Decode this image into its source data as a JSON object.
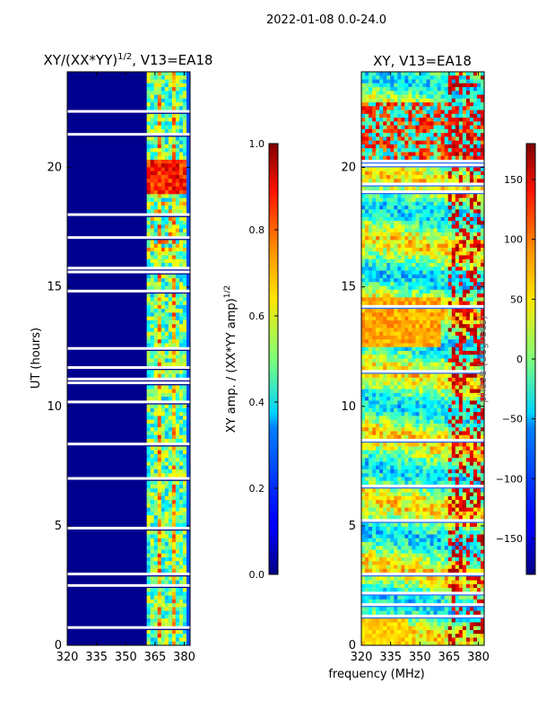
{
  "suptitle": "2022-01-08 0.0-24.0",
  "chart_data": [
    {
      "type": "heatmap",
      "title_main": "XY/(XX*YY)",
      "title_sup": "1/2",
      "title_tail": ", V13=EA18",
      "xlabel": "",
      "ylabel": "UT (hours)",
      "xlim": [
        320,
        383
      ],
      "ylim": [
        0,
        24
      ],
      "xticks": [
        "320",
        "335",
        "350",
        "365",
        "380"
      ],
      "xtick_values": [
        320,
        335,
        350,
        365,
        380
      ],
      "yticks": [
        "0",
        "5",
        "10",
        "15",
        "20"
      ],
      "ytick_values": [
        0,
        5,
        10,
        15,
        20
      ],
      "colorbar": {
        "label_main": "XY amp. / (XX*YY amp)",
        "label_sup": "1/2",
        "range": [
          0.0,
          1.0
        ],
        "ticks": [
          "0.0",
          "0.2",
          "0.4",
          "0.6",
          "0.8",
          "1.0"
        ],
        "tick_values": [
          0.0,
          0.2,
          0.4,
          0.6,
          0.8,
          1.0
        ]
      }
    },
    {
      "type": "heatmap",
      "title_main": "XY, V13=EA18",
      "xlabel": "frequency (MHz)",
      "ylabel": "",
      "xlim": [
        320,
        383
      ],
      "ylim": [
        0,
        24
      ],
      "xticks": [
        "320",
        "335",
        "350",
        "365",
        "380"
      ],
      "xtick_values": [
        320,
        335,
        350,
        365,
        380
      ],
      "yticks": [
        "0",
        "5",
        "10",
        "15",
        "20"
      ],
      "ytick_values": [
        0,
        5,
        10,
        15,
        20
      ],
      "colorbar": {
        "label_main": "phase (degrees)",
        "range": [
          -180,
          180
        ],
        "ticks": [
          "−150",
          "−100",
          "−50",
          "0",
          "50",
          "100",
          "150"
        ],
        "tick_values": [
          -150,
          -100,
          -50,
          0,
          50,
          100,
          150
        ]
      }
    }
  ],
  "colormap": "jet"
}
